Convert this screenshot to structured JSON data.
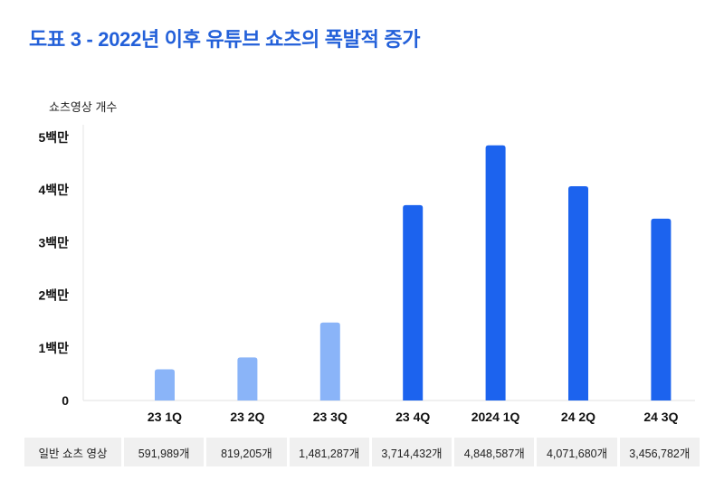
{
  "title": "도표 3 - 2022년 이후 유튜브 쇼츠의 폭발적 증가",
  "colors": {
    "title": "#2360d9",
    "light_bar": "#8ab4f8",
    "dark_bar": "#1c63ee"
  },
  "chart_data": {
    "type": "bar",
    "ylabel": "쇼츠영상 개수",
    "categories": [
      "23 1Q",
      "23 2Q",
      "23 3Q",
      "23 4Q",
      "2024 1Q",
      "24 2Q",
      "24 3Q"
    ],
    "values": [
      591989,
      819205,
      1481287,
      3714432,
      4848587,
      4071680,
      3456782
    ],
    "bar_color_keys": [
      "light_bar",
      "light_bar",
      "light_bar",
      "dark_bar",
      "dark_bar",
      "dark_bar",
      "dark_bar"
    ],
    "yticks": [
      0,
      1000000,
      2000000,
      3000000,
      4000000,
      5000000
    ],
    "ytick_labels": [
      "0",
      "1백만",
      "2백만",
      "3백만",
      "4백만",
      "5백만"
    ],
    "ylim": [
      0,
      5000000
    ],
    "grid": false
  },
  "table": {
    "row_label": "일반 쇼츠 영상",
    "cells": [
      "591,989개",
      "819,205개",
      "1,481,287개",
      "3,714,432개",
      "4,848,587개",
      "4,071,680개",
      "3,456,782개"
    ]
  }
}
